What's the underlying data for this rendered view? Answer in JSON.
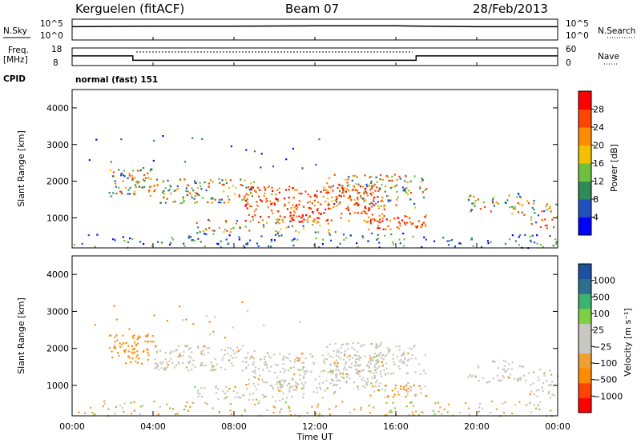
{
  "header": {
    "station": "Kerguelen (fitACF)",
    "beam": "Beam 07",
    "date": "28/Feb/2013"
  },
  "colors": {
    "power_scale": [
      "#0000ff",
      "#2050c0",
      "#2e8b57",
      "#6fbf3f",
      "#f5c000",
      "#ff8c00",
      "#ff4500",
      "#ff0000"
    ],
    "velocity_scale": [
      "#ff0000",
      "#ff4500",
      "#ff8c00",
      "#f0a030",
      "#c8c8c0",
      "#c8c8c0",
      "#7fd040",
      "#3cb371",
      "#2e6f8f",
      "#1e50a0"
    ]
  },
  "chart_data": [
    {
      "type": "line",
      "panel": "noise",
      "left_label": "N.Sky",
      "right_label": "N.Search",
      "left_ticks": [
        "10^5",
        "10^0"
      ],
      "right_ticks": [
        "10^5",
        "10^0"
      ],
      "x": [
        "00:00",
        "04:00",
        "08:00",
        "12:00",
        "16:00",
        "20:00",
        "00:00"
      ],
      "series": [
        {
          "values": [
            3.2,
            3.3,
            3.3,
            3.4,
            3.4,
            3.2,
            3.2
          ]
        }
      ]
    },
    {
      "type": "line",
      "panel": "frequency",
      "left_label": "Freq.",
      "left_unit": "[MHz]",
      "right_label": "Nave",
      "left_ticks": [
        "18",
        "8"
      ],
      "right_ticks": [
        "60",
        "0"
      ],
      "x": [
        0,
        3,
        3,
        17,
        17,
        24
      ],
      "series": [
        {
          "values": [
            13.5,
            13.5,
            11,
            11,
            13.5,
            13.5
          ]
        }
      ]
    },
    {
      "type": "table",
      "panel": "cpid",
      "label": "CPID",
      "value": "normal (fast) 151"
    },
    {
      "type": "heatmap",
      "panel": "power",
      "ylabel": "Slant Range [km]",
      "yticks": [
        1000,
        2000,
        3000,
        4000
      ],
      "ylim": [
        180,
        4500
      ],
      "xlim": [
        0,
        24
      ],
      "colorbar_label": "Power [dB]",
      "colorbar_ticks": [
        "4",
        "8",
        "12",
        "16",
        "20",
        "24",
        "28"
      ],
      "colorbar_range": [
        0,
        32
      ]
    },
    {
      "type": "heatmap",
      "panel": "velocity",
      "ylabel": "Slant Range [km]",
      "yticks": [
        1000,
        2000,
        3000,
        4000
      ],
      "ylim": [
        180,
        4500
      ],
      "xlim": [
        0,
        24
      ],
      "xticks": [
        "00:00",
        "04:00",
        "08:00",
        "12:00",
        "16:00",
        "20:00",
        "00:00"
      ],
      "xlabel": "Time UT",
      "colorbar_label": "Velocity [m s⁻¹]",
      "colorbar_ticks": [
        "1000",
        "500",
        "100",
        "25",
        "−25",
        "−100",
        "−500",
        "−1000"
      ]
    }
  ]
}
